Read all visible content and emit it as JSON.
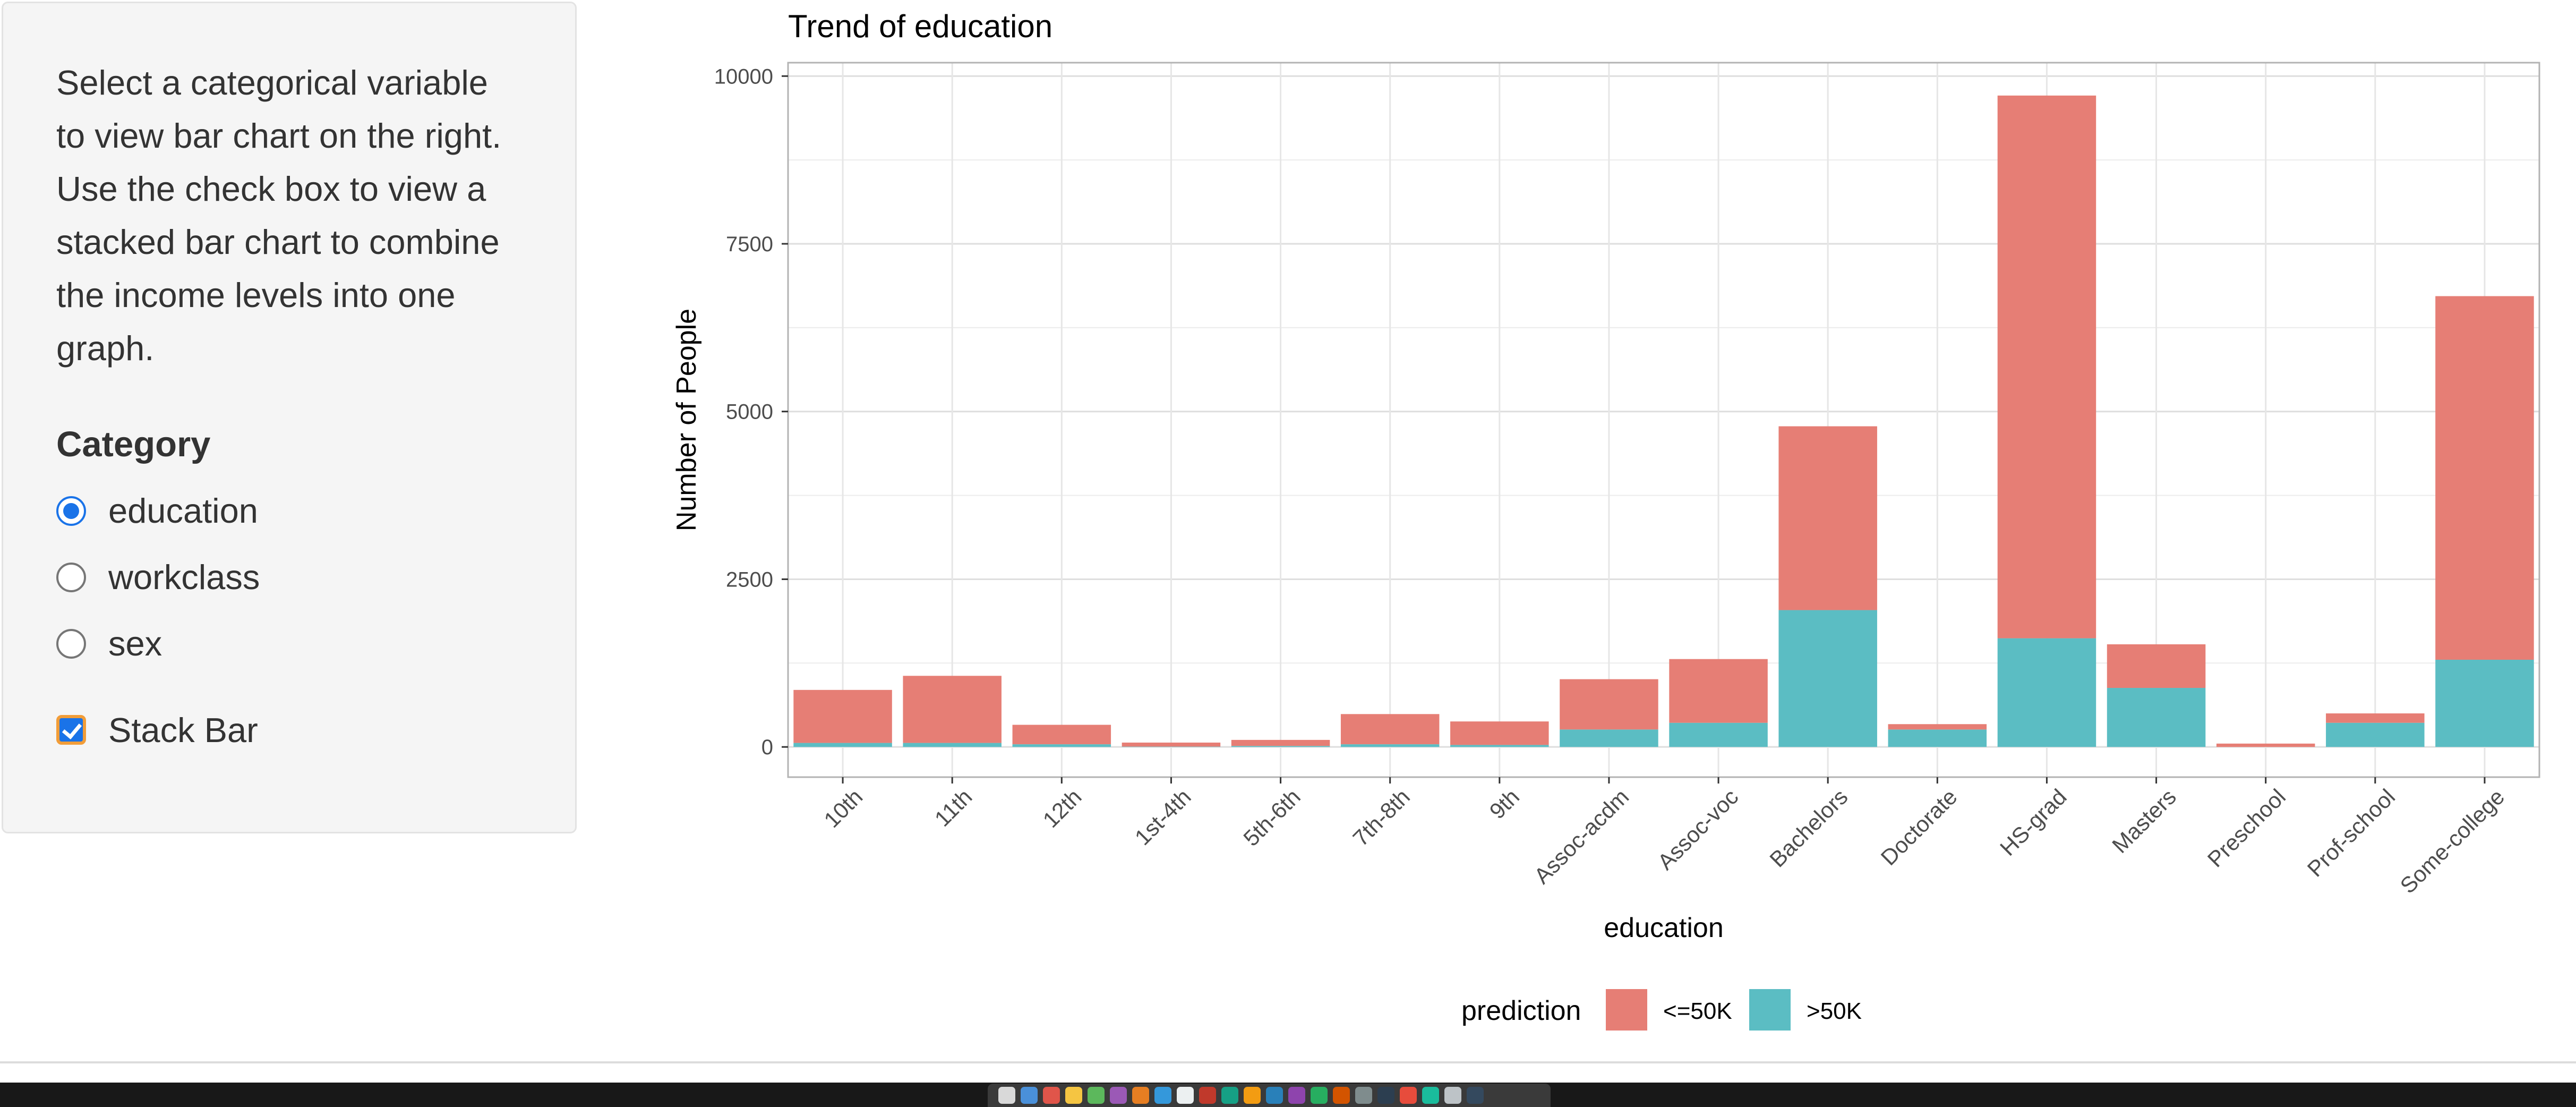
{
  "sidebar": {
    "help_text": "Select a categorical variable to view bar chart on the right. Use the check box to view a stacked bar chart to combine the income levels into one graph.",
    "category_label": "Category",
    "options": [
      {
        "label": "education",
        "checked": true
      },
      {
        "label": "workclass",
        "checked": false
      },
      {
        "label": "sex",
        "checked": false
      }
    ],
    "stack_bar": {
      "label": "Stack Bar",
      "checked": true
    }
  },
  "colors": {
    "le50k": "#e67e75",
    "gt50k": "#5bbdc3",
    "radio_accent": "#1a73e8",
    "checkbox_focus": "#f29d38"
  },
  "chart_data": {
    "type": "bar",
    "stacked": true,
    "title": "Trend of education",
    "xlabel": "education",
    "ylabel": "Number of People",
    "ylim": [
      -450,
      10200
    ],
    "yticks": [
      0,
      2500,
      5000,
      7500,
      10000
    ],
    "yticks_labels": [
      "0",
      "2500",
      "5000",
      "7500",
      "10000"
    ],
    "grid": true,
    "legend_title": "prediction",
    "legend_position": "bottom",
    "categories": [
      "10th",
      "11th",
      "12th",
      "1st-4th",
      "5th-6th",
      "7th-8th",
      "9th",
      "Assoc-acdm",
      "Assoc-voc",
      "Bachelors",
      "Doctorate",
      "HS-grad",
      "Masters",
      "Preschool",
      "Prof-school",
      "Some-college"
    ],
    "series": [
      {
        "name": "<=50K",
        "values": [
          790,
          1000,
          290,
          60,
          90,
          450,
          350,
          750,
          950,
          2740,
          80,
          8090,
          650,
          50,
          140,
          5420
        ]
      },
      {
        "name": ">50K",
        "values": [
          60,
          60,
          40,
          5,
          15,
          40,
          30,
          260,
          360,
          2040,
          260,
          1620,
          880,
          0,
          360,
          1300
        ]
      }
    ]
  },
  "dock": {
    "icon_colors": [
      "#d9d9d9",
      "#4a90d9",
      "#e0554a",
      "#f5c542",
      "#5cb85c",
      "#9b59b6",
      "#e67e22",
      "#3498db",
      "#ecf0f1",
      "#c0392b",
      "#16a085",
      "#f39c12",
      "#2980b9",
      "#8e44ad",
      "#27ae60",
      "#d35400",
      "#7f8c8d",
      "#2c3e50",
      "#e74c3c",
      "#1abc9c",
      "#bdc3c7",
      "#34495e"
    ]
  }
}
